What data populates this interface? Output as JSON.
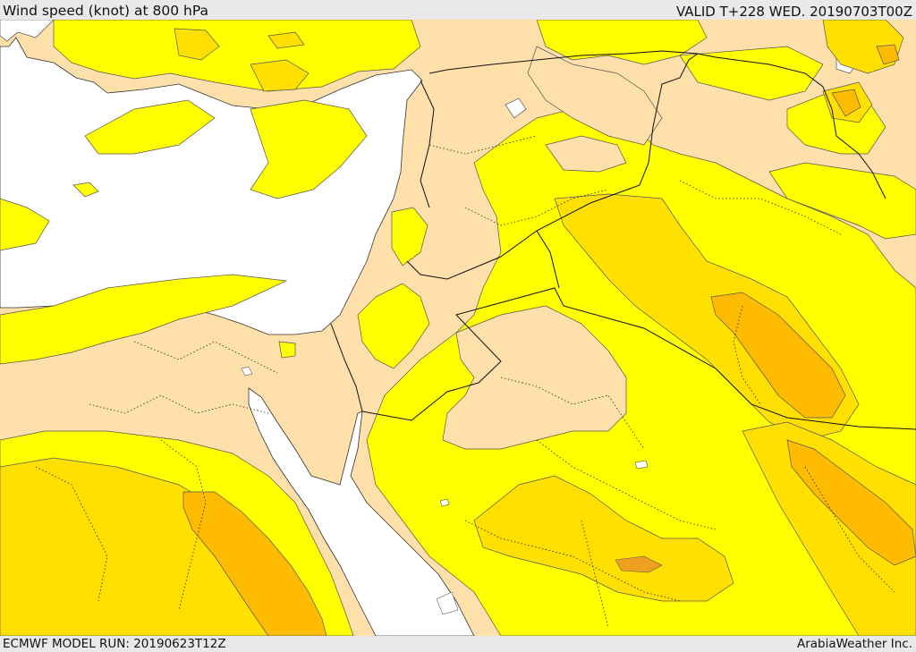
{
  "header": {
    "title": "Wind speed (knot) at 800 hPa",
    "valid_time": "VALID T+228 WED. 20190703T00Z"
  },
  "footer": {
    "model_run": "ECMWF MODEL RUN: 20190623T12Z",
    "provider": "ArabiaWeather Inc."
  },
  "colors": {
    "sea": "#ffffff",
    "band_low": "#ffe0aa",
    "band_mid": "#ffff00",
    "band_high": "#ffe000",
    "band_higher": "#ffbb00",
    "band_peak": "#f0a020",
    "contour": "#555555",
    "border": "#111111"
  }
}
